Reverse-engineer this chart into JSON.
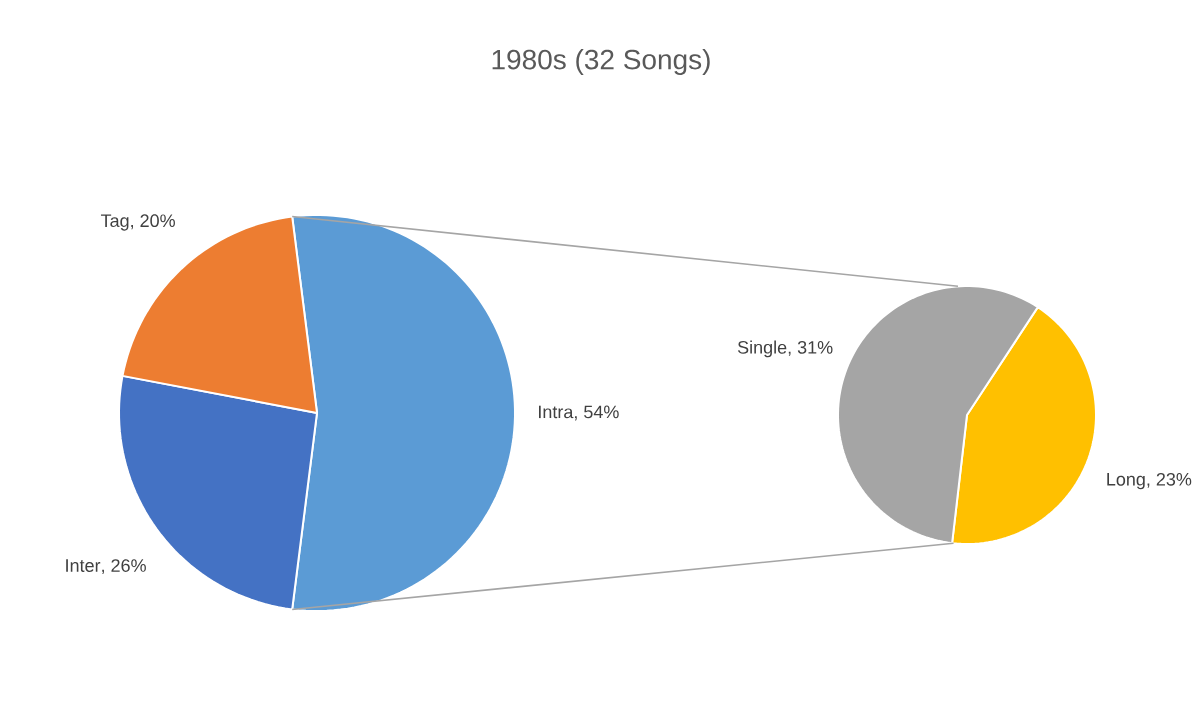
{
  "chart_data": [
    {
      "type": "pie",
      "title": "1980s (32 Songs)",
      "categories": [
        "Intra",
        "Inter",
        "Tag"
      ],
      "values": [
        54,
        26,
        20
      ],
      "colors": [
        "#5b9bd5",
        "#4472c4",
        "#ed7d31"
      ],
      "value_labels": [
        ", 54%",
        ", 26%",
        ", 20%"
      ]
    },
    {
      "type": "pie",
      "categories": [
        "Long",
        "Single"
      ],
      "values": [
        23,
        31
      ],
      "colors": [
        "#ffc000",
        "#a5a5a5"
      ],
      "value_labels": [
        ", 23%",
        ", 31%"
      ]
    }
  ]
}
